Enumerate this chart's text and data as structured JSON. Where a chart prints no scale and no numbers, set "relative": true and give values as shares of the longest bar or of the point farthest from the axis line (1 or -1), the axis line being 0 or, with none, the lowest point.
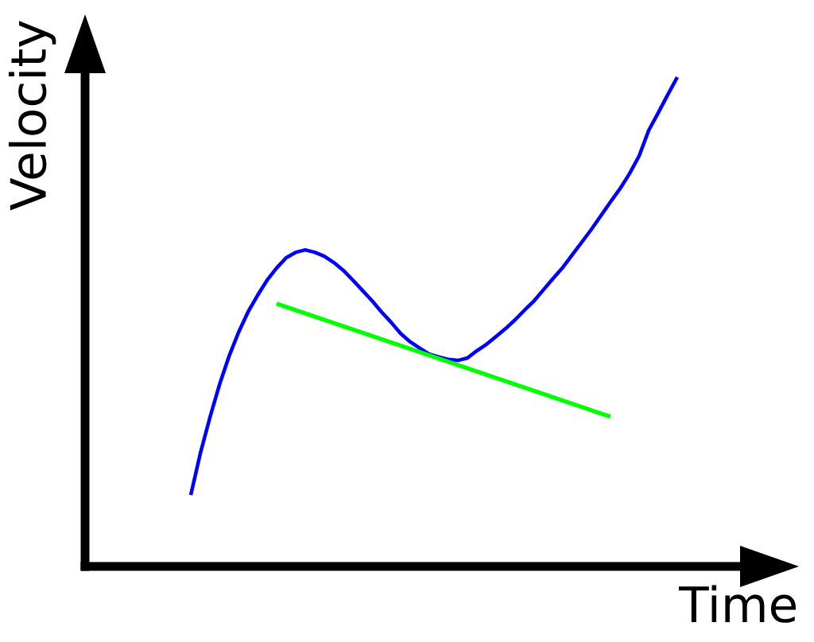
{
  "chart_data": {
    "type": "line",
    "xlabel": "Time",
    "ylabel": "Velocity",
    "relative": true,
    "categories": [
      null,
      null,
      null,
      null,
      null,
      null,
      null,
      null,
      null,
      null,
      null,
      null,
      null,
      null,
      null,
      null,
      null,
      null,
      null,
      null,
      null,
      null,
      null,
      null,
      null,
      null,
      null,
      null,
      null,
      null,
      null,
      null,
      null,
      null,
      null,
      null,
      null,
      null,
      null,
      null,
      null,
      null,
      null,
      null,
      null,
      null,
      null,
      null,
      null,
      null,
      null,
      null
    ],
    "series": [
      {
        "color": "#0000ff",
        "values": [
          0.146,
          0.231,
          0.304,
          0.371,
          0.429,
          0.478,
          0.52,
          0.554,
          0.585,
          0.61,
          0.631,
          0.642,
          0.647,
          0.642,
          0.634,
          0.621,
          0.605,
          0.585,
          0.564,
          0.543,
          0.52,
          0.499,
          0.476,
          0.459,
          0.446,
          0.434,
          0.428,
          0.423,
          0.421,
          0.426,
          0.441,
          0.454,
          0.47,
          0.486,
          0.504,
          0.524,
          0.543,
          0.566,
          0.589,
          0.611,
          0.637,
          0.663,
          0.689,
          0.717,
          0.745,
          0.772,
          0.803,
          0.839,
          0.891,
          0.927,
          0.964,
          1
        ]
      },
      {
        "color": "#00ff00",
        "values": [
          null,
          null,
          null,
          null,
          null,
          null,
          null,
          null,
          null,
          0.537,
          null,
          null,
          null,
          null,
          null,
          null,
          null,
          null,
          null,
          null,
          null,
          null,
          null,
          null,
          null,
          null,
          null,
          null,
          null,
          null,
          null,
          null,
          null,
          null,
          null,
          null,
          null,
          null,
          null,
          null,
          null,
          null,
          null,
          null,
          0.306,
          null,
          null,
          null,
          null,
          null,
          null,
          null
        ]
      }
    ]
  }
}
